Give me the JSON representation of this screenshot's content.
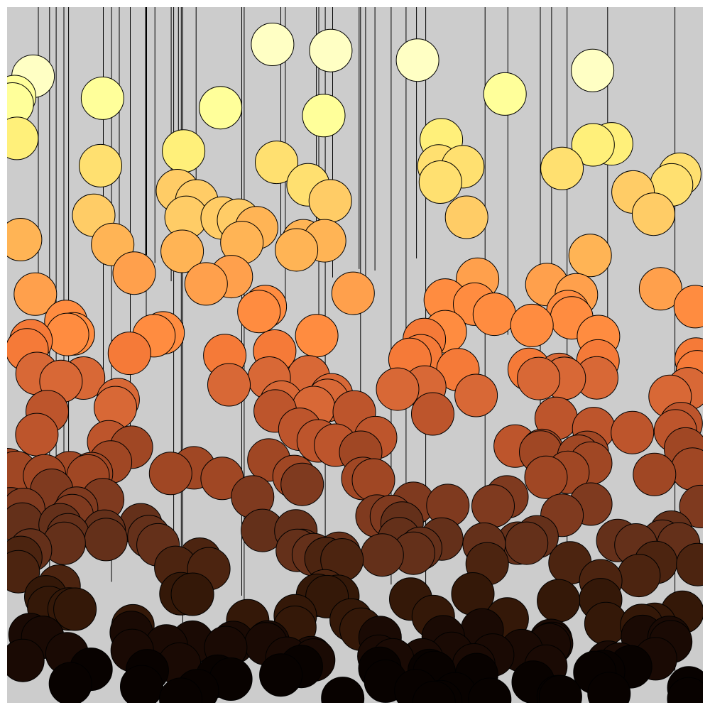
{
  "colors": {
    "page": "#ffffff",
    "background": "#cccccc",
    "string": "#000000",
    "outline": "#000000",
    "palette": [
      "#fffff0",
      "#ffffc4",
      "#ffff9a",
      "#fff07a",
      "#ffe070",
      "#ffcc66",
      "#ffb455",
      "#ffa04c",
      "#ff8c40",
      "#f57a38",
      "#d86836",
      "#bd552c",
      "#a04724",
      "#7f3a1f",
      "#64301a",
      "#4c2410",
      "#341808",
      "#1a0a04",
      "#080200"
    ]
  },
  "strings_count": 42,
  "balls_count": 300
}
